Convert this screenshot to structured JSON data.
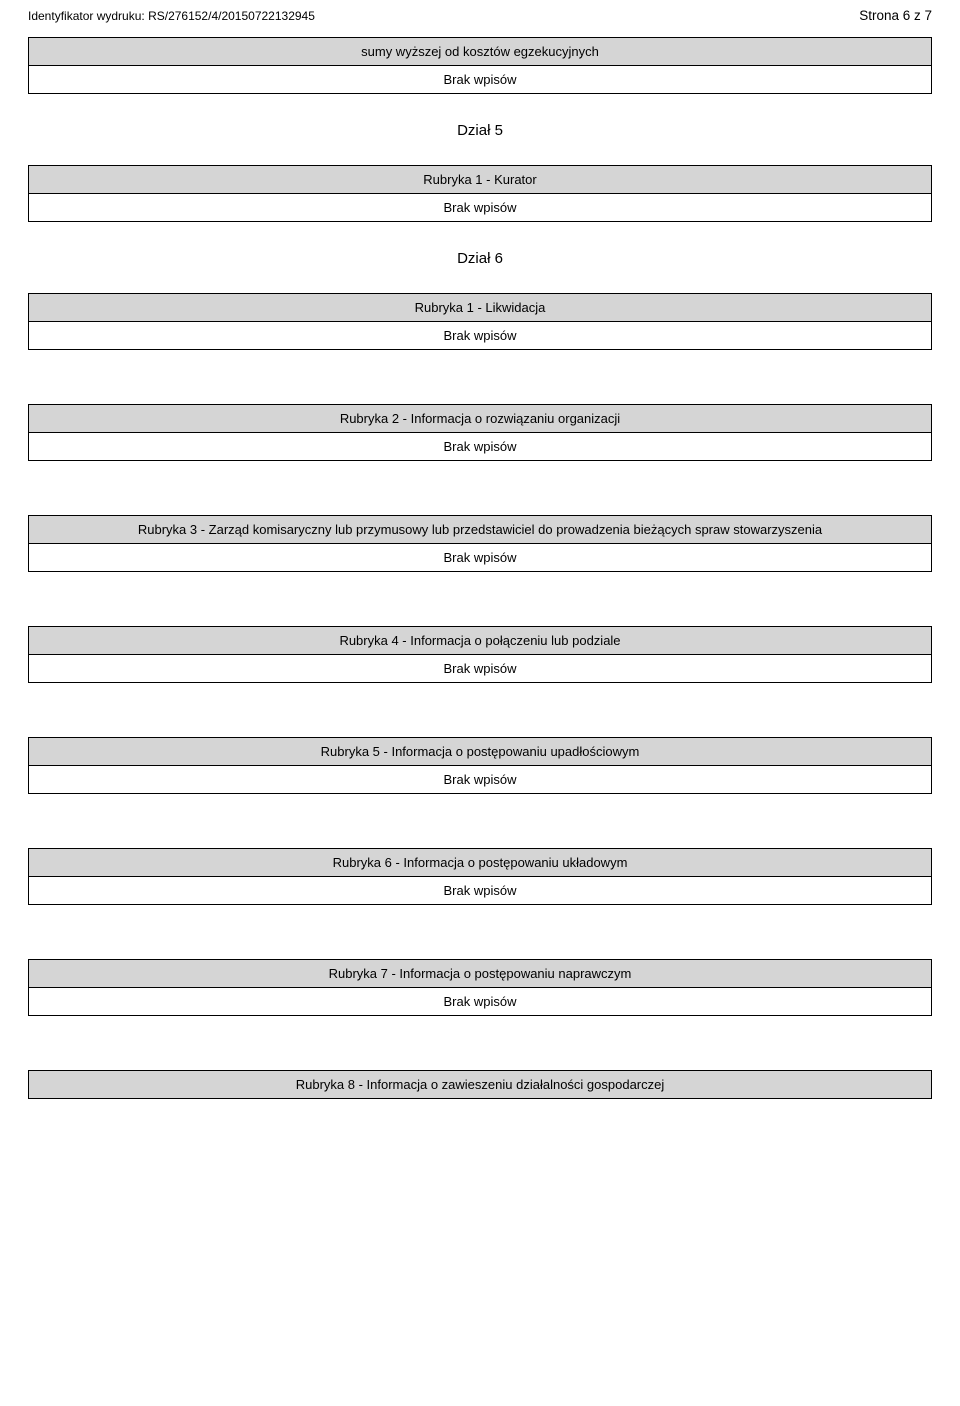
{
  "header": {
    "identifier_label": "Identyfikator wydruku:",
    "identifier_value": "RS/276152/4/20150722132945",
    "page_label": "Strona 6 z 7"
  },
  "top_section": {
    "header": "sumy wyższej od kosztów egzekucyjnych",
    "body": "Brak wpisów"
  },
  "dzial5": {
    "title": "Dział 5",
    "rubryka1": {
      "header": "Rubryka 1 - Kurator",
      "body": "Brak wpisów"
    }
  },
  "dzial6": {
    "title": "Dział 6",
    "rubryka1": {
      "header": "Rubryka 1 - Likwidacja",
      "body": "Brak wpisów"
    },
    "rubryka2": {
      "header": "Rubryka 2 - Informacja o rozwiązaniu organizacji",
      "body": "Brak wpisów"
    },
    "rubryka3": {
      "header": "Rubryka 3 - Zarząd komisaryczny lub przymusowy lub przedstawiciel do prowadzenia bieżących spraw stowarzyszenia",
      "body": "Brak wpisów"
    },
    "rubryka4": {
      "header": "Rubryka 4 - Informacja o połączeniu lub podziale",
      "body": "Brak wpisów"
    },
    "rubryka5": {
      "header": "Rubryka 5 - Informacja o postępowaniu upadłościowym",
      "body": "Brak wpisów"
    },
    "rubryka6": {
      "header": "Rubryka 6 - Informacja o postępowaniu układowym",
      "body": "Brak wpisów"
    },
    "rubryka7": {
      "header": "Rubryka 7 - Informacja o postępowaniu naprawczym",
      "body": "Brak wpisów"
    },
    "rubryka8": {
      "header": "Rubryka 8 - Informacja o zawieszeniu działalności gospodarczej"
    }
  },
  "colors": {
    "header_bg": "#d5d5d5",
    "border": "#000000",
    "page_bg": "#ffffff",
    "text": "#000000"
  }
}
